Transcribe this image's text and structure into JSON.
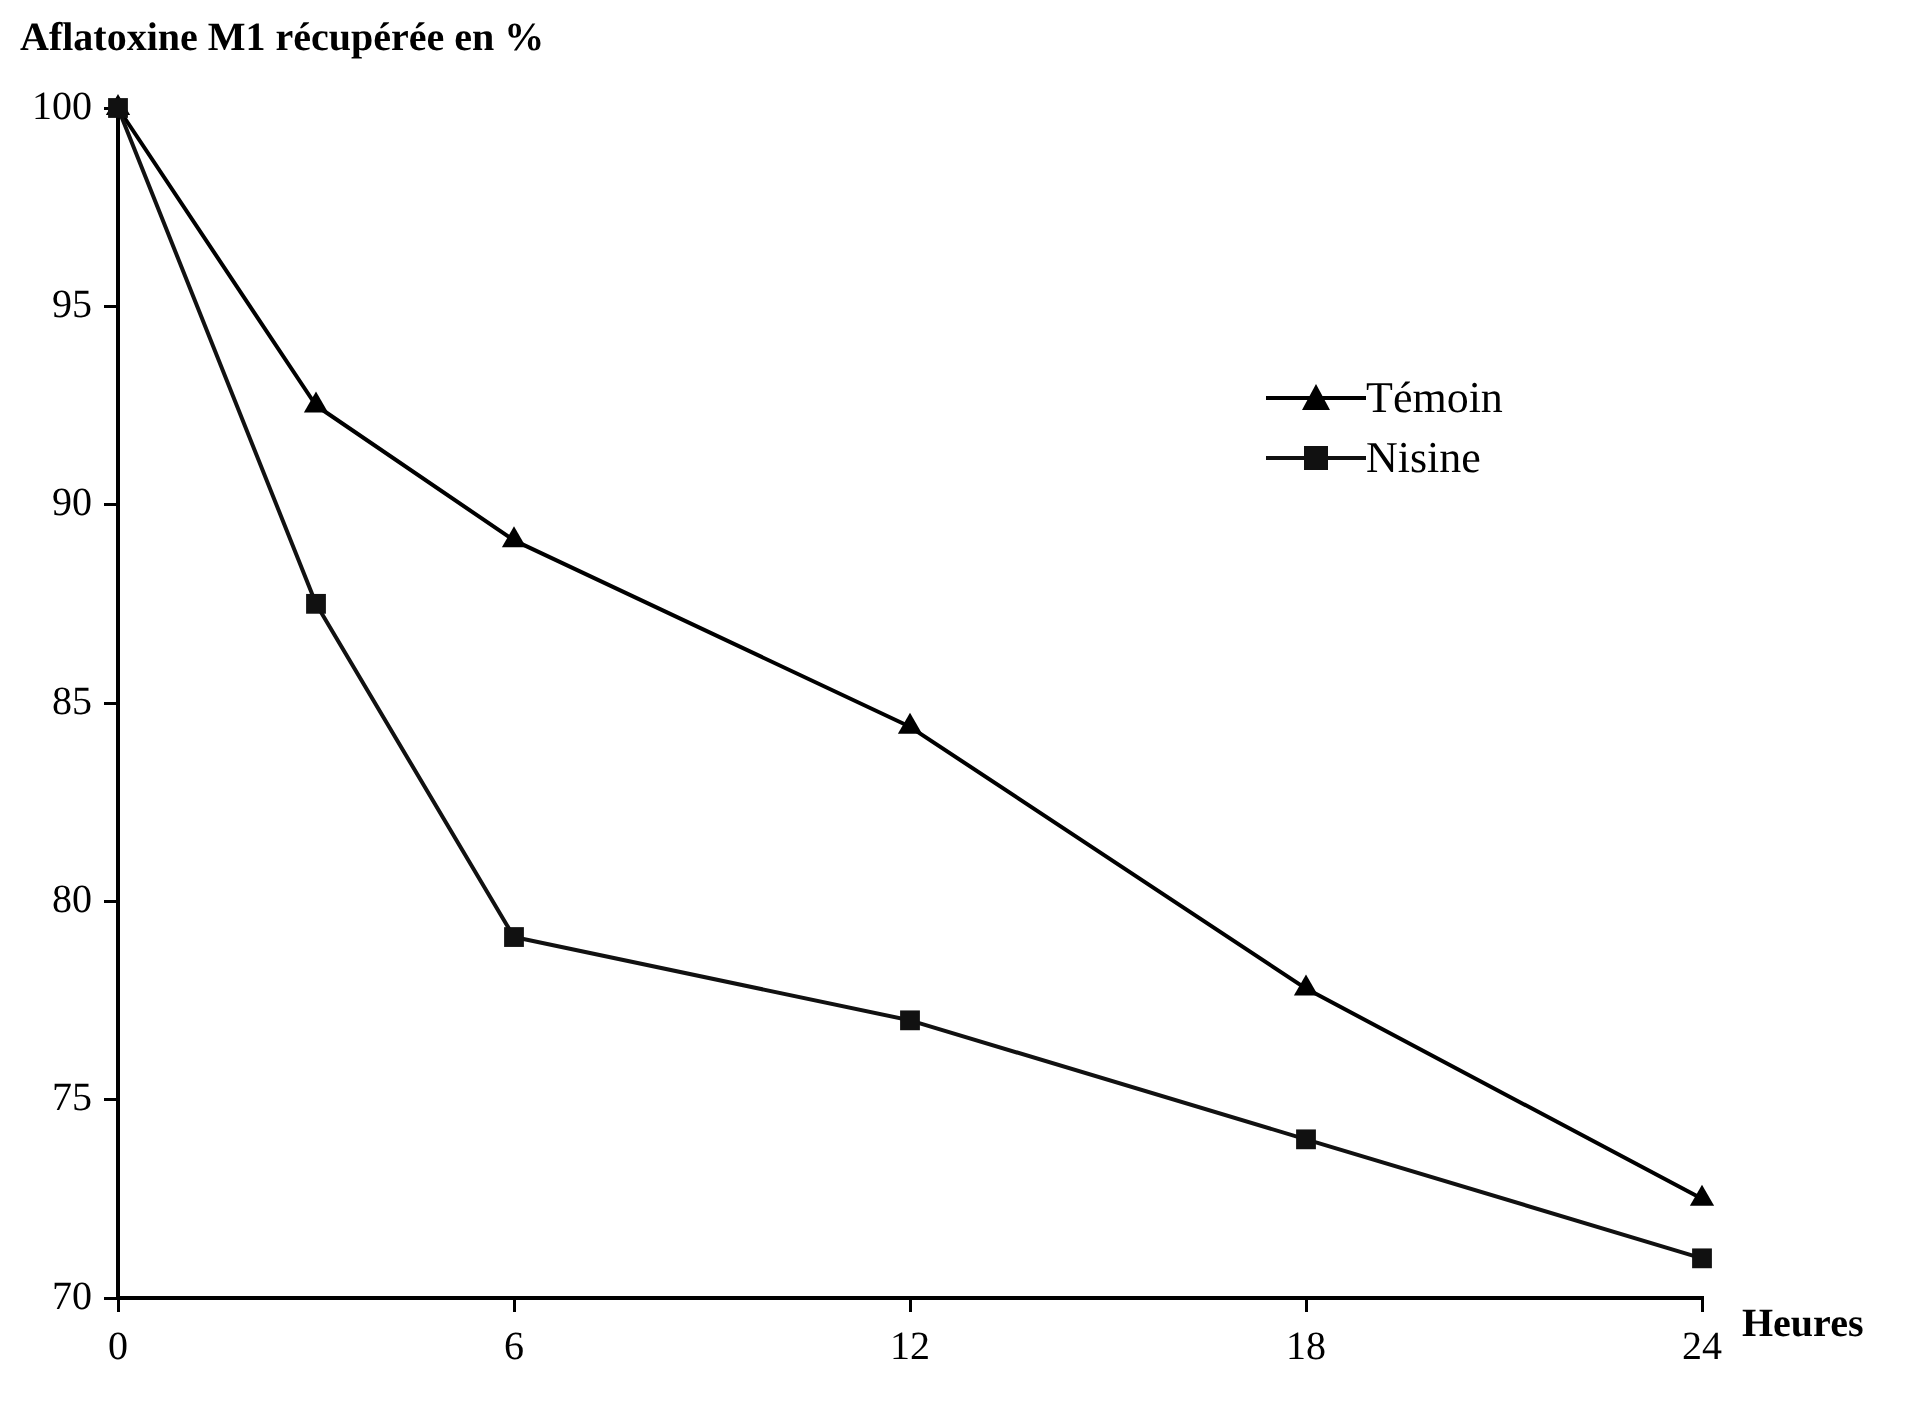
{
  "chart_data": {
    "type": "line",
    "title": "Aflatoxine M1 récupérée en %",
    "xlabel": "Heures",
    "x": [
      0,
      3,
      6,
      12,
      18,
      24
    ],
    "series": [
      {
        "name": "Témoin",
        "color": "#000000",
        "marker": "triangle",
        "values": [
          100,
          92.5,
          89.1,
          84.4,
          77.8,
          72.5
        ]
      },
      {
        "name": "Nisine",
        "color": "#111111",
        "marker": "square",
        "values": [
          100,
          87.5,
          79.1,
          77.0,
          74.0,
          71.0
        ]
      }
    ],
    "xlim": [
      0,
      24
    ],
    "xticks": [
      0,
      6,
      12,
      18,
      24
    ],
    "ylim": [
      70,
      100
    ],
    "yticks": [
      70,
      75,
      80,
      85,
      90,
      95,
      100
    ],
    "legend": "top right",
    "line_style": "solid"
  }
}
